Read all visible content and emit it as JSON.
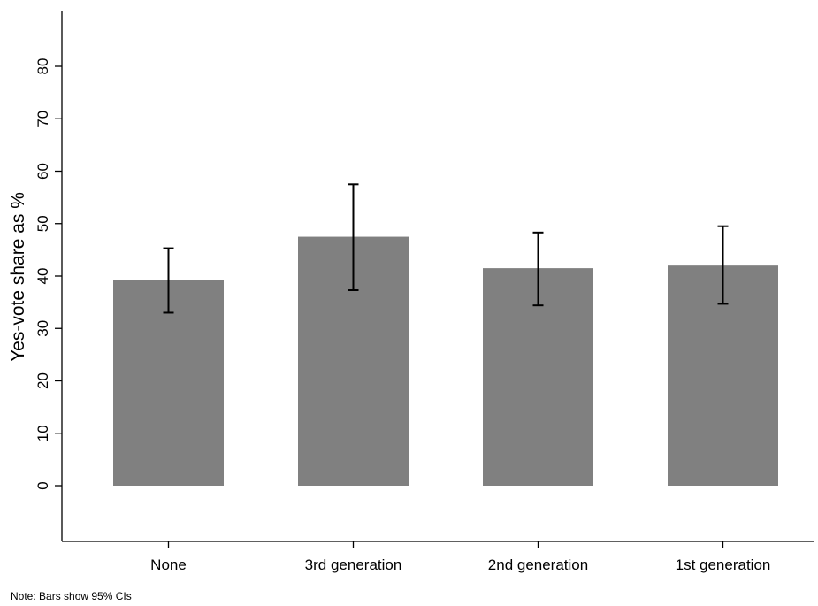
{
  "chart_data": {
    "type": "bar",
    "categories": [
      "None",
      "3rd generation",
      "2nd generation",
      "1st generation"
    ],
    "values": [
      39.2,
      47.5,
      41.5,
      42.0
    ],
    "ci_lower": [
      33.0,
      37.3,
      34.4,
      34.7
    ],
    "ci_upper": [
      45.3,
      57.5,
      48.3,
      49.5
    ],
    "ylabel": "Yes-vote share as %",
    "xlabel": "",
    "ylim": [
      -10.5,
      90
    ],
    "yticks": [
      0,
      10,
      20,
      30,
      40,
      50,
      60,
      70,
      80
    ],
    "bar_color": "#808080",
    "errorbar_color": "#000000",
    "grid": false
  },
  "note": "Note: Bars show 95% CIs"
}
